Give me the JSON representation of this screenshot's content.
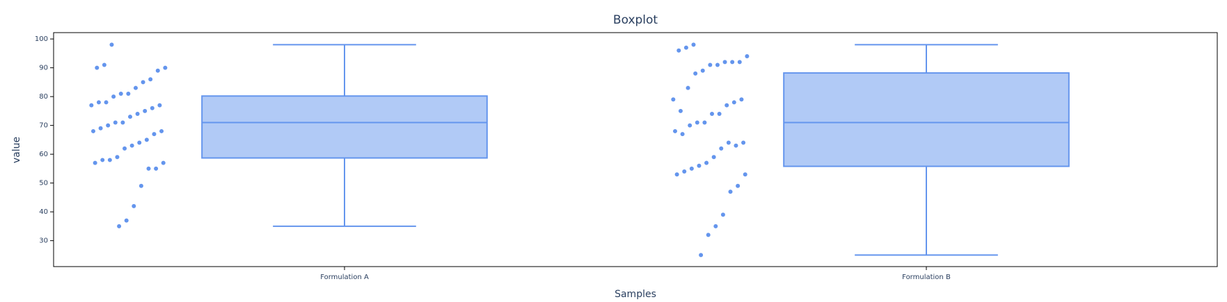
{
  "chart_data": {
    "type": "box",
    "title": "Boxplot",
    "x_label": "Samples",
    "y_label": "value",
    "color": "#6495ed",
    "categories": [
      "Formulation A",
      "Formulation B"
    ],
    "boxes": [
      {
        "min": 35,
        "q1": 58.7,
        "median": 71,
        "q3": 80.2,
        "max": 98,
        "points": [
          98,
          91,
          90,
          90,
          89,
          86,
          85,
          83,
          81,
          81,
          80,
          78,
          78,
          77,
          77,
          76,
          75,
          74,
          73,
          71,
          71,
          70,
          69,
          68,
          68,
          67,
          65,
          64,
          63,
          62,
          59,
          58,
          58,
          57,
          57,
          55,
          55,
          49,
          42,
          37,
          35
        ]
      },
      {
        "min": 25,
        "q1": 55.8,
        "median": 71,
        "q3": 88.2,
        "max": 98,
        "points": [
          98,
          97,
          96,
          94,
          92,
          92,
          92,
          91,
          91,
          89,
          88,
          83,
          75,
          79,
          79,
          78,
          77,
          74,
          74,
          71,
          71,
          70,
          67,
          68,
          64,
          63,
          64,
          62,
          59,
          57,
          56,
          55,
          54,
          53,
          53,
          49,
          47,
          39,
          35,
          32,
          25
        ]
      }
    ],
    "ylim": [
      21,
      102.2
    ],
    "yticks": [
      30,
      40,
      50,
      60,
      70,
      80,
      90,
      100
    ]
  }
}
